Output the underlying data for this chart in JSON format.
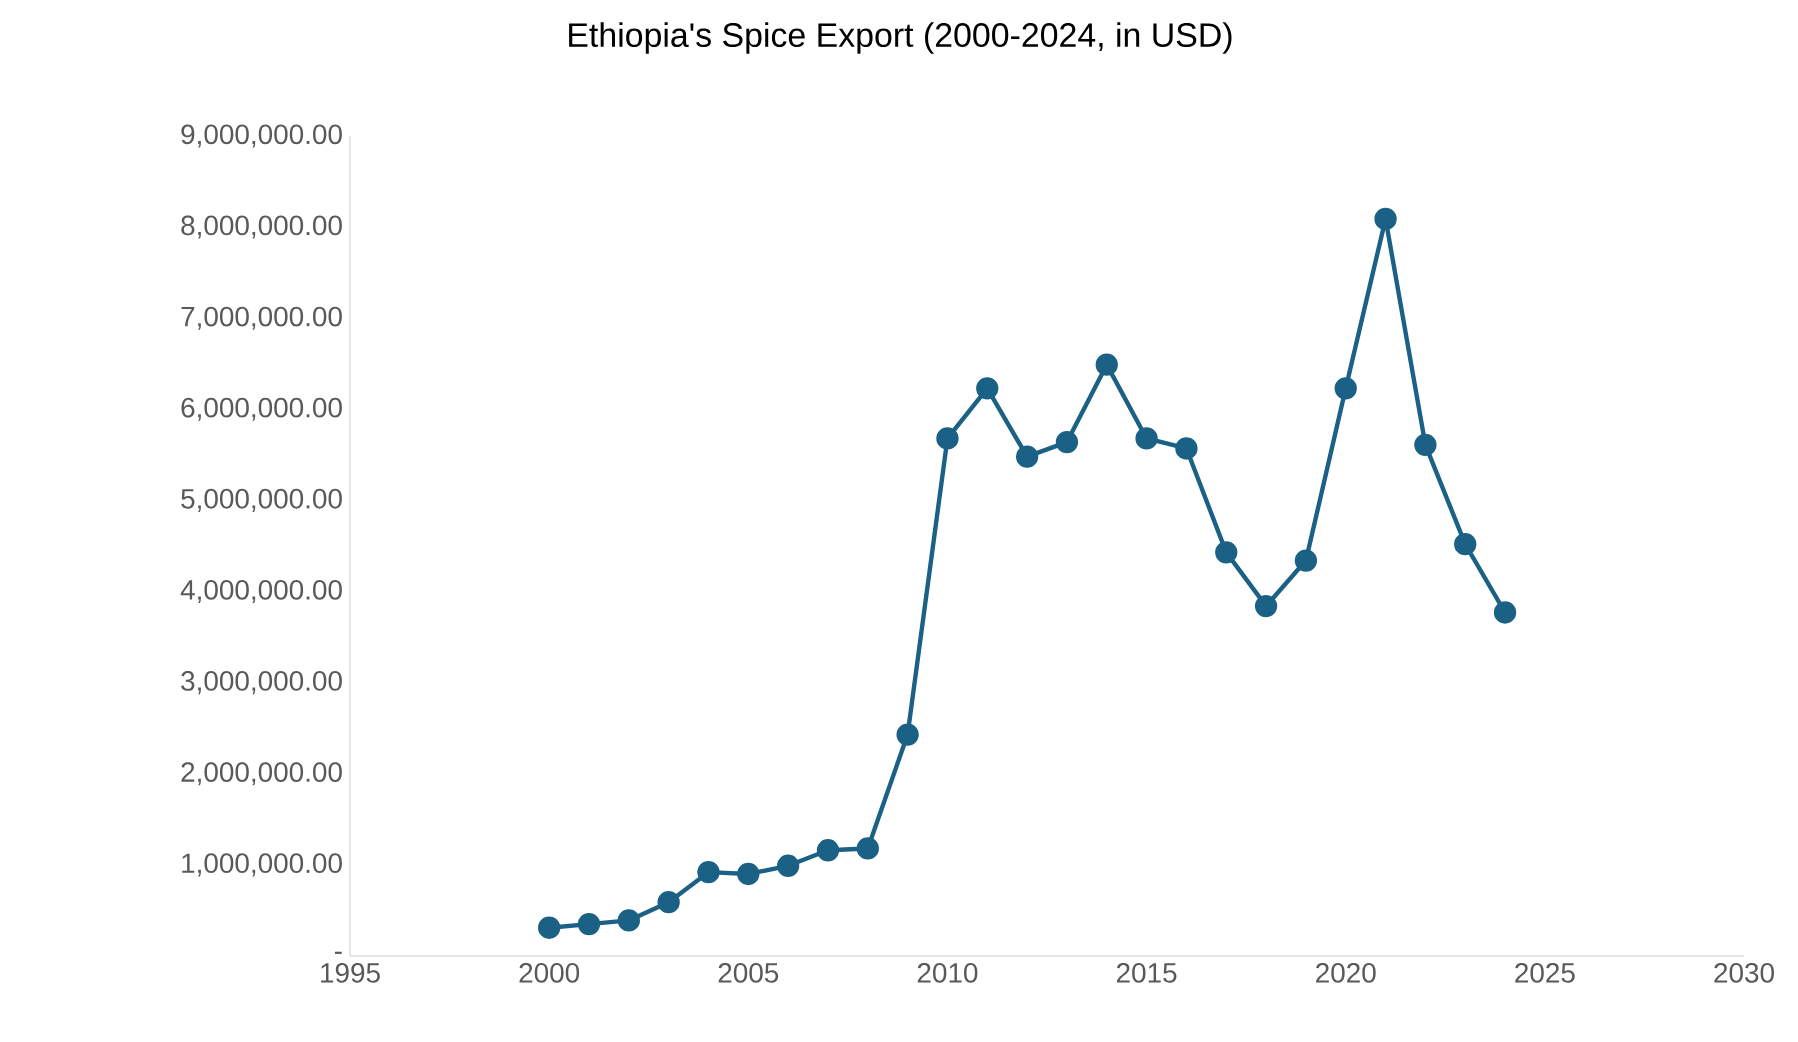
{
  "chart_data": {
    "type": "line",
    "title": "Ethiopia's Spice Export (2000-2024, in USD)",
    "x": [
      2000,
      2001,
      2002,
      2003,
      2004,
      2005,
      2006,
      2007,
      2008,
      2009,
      2010,
      2011,
      2012,
      2013,
      2014,
      2015,
      2016,
      2017,
      2018,
      2019,
      2020,
      2021,
      2022,
      2023,
      2024
    ],
    "series": [
      {
        "color": "#1a6185",
        "values": [
          310000,
          350000,
          390000,
          590000,
          920000,
          900000,
          990000,
          1160000,
          1180000,
          2430000,
          5680000,
          6230000,
          5480000,
          5640000,
          6490000,
          5680000,
          5570000,
          4430000,
          3840000,
          4340000,
          6230000,
          8090000,
          5610000,
          4520000,
          3770000
        ]
      }
    ],
    "xlim": [
      1995,
      2030
    ],
    "xticks": [
      1995,
      2000,
      2005,
      2010,
      2015,
      2020,
      2025,
      2030
    ],
    "ylim": [
      0,
      9000000
    ],
    "yticks": [
      {
        "value": 0,
        "label": "-"
      },
      {
        "value": 1000000,
        "label": "1,000,000.00"
      },
      {
        "value": 2000000,
        "label": "2,000,000.00"
      },
      {
        "value": 3000000,
        "label": "3,000,000.00"
      },
      {
        "value": 4000000,
        "label": "4,000,000.00"
      },
      {
        "value": 5000000,
        "label": "5,000,000.00"
      },
      {
        "value": 6000000,
        "label": "6,000,000.00"
      },
      {
        "value": 7000000,
        "label": "7,000,000.00"
      },
      {
        "value": 8000000,
        "label": "8,000,000.00"
      },
      {
        "value": 9000000,
        "label": "9,000,000.00"
      }
    ],
    "grid": false,
    "marker": "circle",
    "line_style": "solid"
  }
}
